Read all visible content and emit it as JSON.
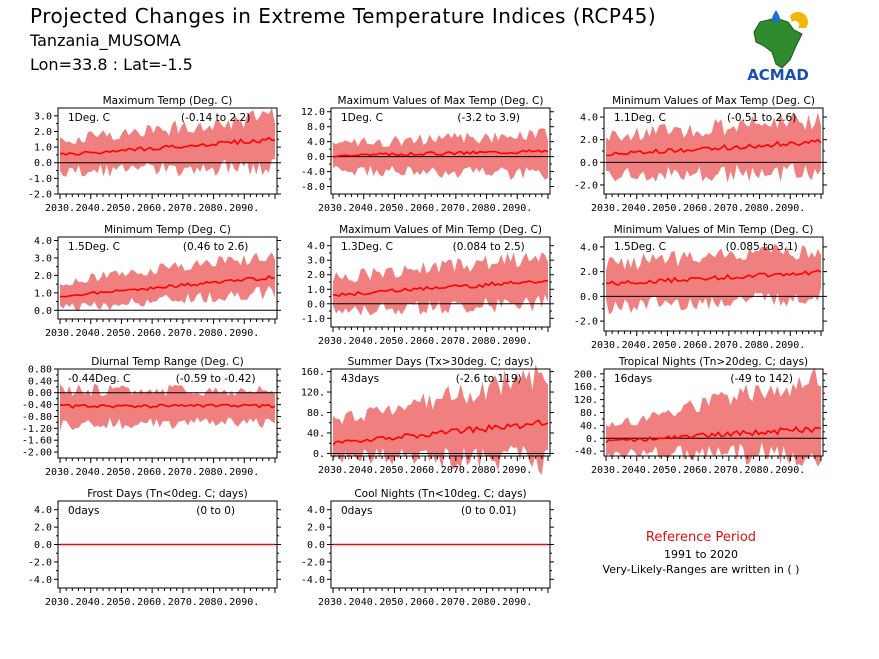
{
  "header": {
    "title": "Projected Changes in Extreme Temperature Indices (RCP45)",
    "region": "Tanzania_MUSOMA",
    "coords": "Lon=33.8 : Lat=-1.5",
    "logo_text": "ACMAD"
  },
  "reference": {
    "title": "Reference Period",
    "years": "1991 to 2020",
    "note": "Very-Likely-Ranges are written in ( )"
  },
  "colors": {
    "band": "#f08080",
    "line": "#ff0000",
    "zero": "#000000",
    "ref_title": "#e01010"
  },
  "chart_data": [
    {
      "type": "area",
      "title": "Maximum Temp (Deg. C)",
      "value_label": "1Deg. C",
      "range_label": "(-0.14 to 2.2)",
      "ylim": [
        -2.0,
        3.5
      ],
      "yticks": [
        "-2.0",
        "-1.0",
        "0.0",
        "1.0",
        "2.0",
        "3.0"
      ],
      "yvals": [
        -2,
        -1,
        0,
        1,
        2,
        3
      ],
      "xticks": [
        "2030.",
        "2040.",
        "2050.",
        "2060.",
        "2070.",
        "2080.",
        "2090."
      ],
      "series": {
        "start": 0.5,
        "end": 1.5,
        "low_start": -0.4,
        "low_end": 0.0,
        "high_start": 1.3,
        "high_end": 2.7
      }
    },
    {
      "type": "area",
      "title": "Maximum Values of Max Temp (Deg. C)",
      "value_label": "1Deg. C",
      "range_label": "(-3.2 to 3.9)",
      "ylim": [
        -10,
        13
      ],
      "yticks": [
        "-8.0",
        "-4.0",
        "0.0",
        "4.0",
        "8.0",
        "12.0"
      ],
      "yvals": [
        -8,
        -4,
        0,
        4,
        8,
        12
      ],
      "xticks": [
        "2030.",
        "2040.",
        "2050.",
        "2060.",
        "2070.",
        "2080.",
        "2090."
      ],
      "series": {
        "start": 0.3,
        "end": 1.5,
        "low_start": -3,
        "low_end": -4,
        "high_start": 3,
        "high_end": 5
      }
    },
    {
      "type": "area",
      "title": "Minimum Values of Max Temp (Deg. C)",
      "value_label": "1.1Deg. C",
      "range_label": "(-0.51 to 2.6)",
      "ylim": [
        -2.8,
        4.8
      ],
      "yticks": [
        "-2.0",
        "0.0",
        "2.0",
        "4.0"
      ],
      "yvals": [
        -2,
        0,
        2,
        4
      ],
      "xticks": [
        "2030.",
        "2040.",
        "2050.",
        "2060.",
        "2070.",
        "2080.",
        "2090."
      ],
      "series": {
        "start": 0.7,
        "end": 1.8,
        "low_start": -0.8,
        "low_end": -0.6,
        "high_start": 2.0,
        "high_end": 3.5
      }
    },
    {
      "type": "area",
      "title": "Minimum Temp (Deg. C)",
      "value_label": "1.5Deg. C",
      "range_label": "(0.46 to 2.6)",
      "ylim": [
        -0.5,
        4.2
      ],
      "yticks": [
        "0.0",
        "1.0",
        "2.0",
        "3.0",
        "4.0"
      ],
      "yvals": [
        0,
        1,
        2,
        3,
        4
      ],
      "xticks": [
        "2030.",
        "2040.",
        "2050.",
        "2060.",
        "2070.",
        "2080.",
        "2090."
      ],
      "series": {
        "start": 0.8,
        "end": 1.9,
        "low_start": 0.2,
        "low_end": 1.2,
        "high_start": 1.5,
        "high_end": 3.0
      }
    },
    {
      "type": "area",
      "title": "Maximum Values of Min Temp (Deg. C)",
      "value_label": "1.3Deg. C",
      "range_label": "(0.084 to 2.5)",
      "ylim": [
        -1.6,
        4.6
      ],
      "yticks": [
        "-1.0",
        "0.0",
        "1.0",
        "2.0",
        "3.0",
        "4.0"
      ],
      "yvals": [
        -1,
        0,
        1,
        2,
        3,
        4
      ],
      "xticks": [
        "2030.",
        "2040.",
        "2050.",
        "2060.",
        "2070.",
        "2080.",
        "2090."
      ],
      "series": {
        "start": 0.6,
        "end": 1.6,
        "low_start": -0.3,
        "low_end": 0.3,
        "high_start": 1.6,
        "high_end": 3.0
      }
    },
    {
      "type": "area",
      "title": "Minimum Values of Min Temp (Deg. C)",
      "value_label": "1.5Deg. C",
      "range_label": "(0.085 to 3.1)",
      "ylim": [
        -2.8,
        4.8
      ],
      "yticks": [
        "-2.0",
        "0.0",
        "2.0",
        "4.0"
      ],
      "yvals": [
        -2,
        0,
        2,
        4
      ],
      "xticks": [
        "2030.",
        "2040.",
        "2050.",
        "2060.",
        "2070.",
        "2080.",
        "2090."
      ],
      "series": {
        "start": 1.0,
        "end": 2.0,
        "low_start": -0.6,
        "low_end": 0.3,
        "high_start": 2.4,
        "high_end": 3.5
      }
    },
    {
      "type": "area",
      "title": "Diurnal Temp Range (Deg. C)",
      "value_label": "-0.44Deg. C",
      "range_label": "(-0.59 to -0.42)",
      "ylim": [
        -2.2,
        0.8
      ],
      "yticks": [
        "-2.00",
        "-1.60",
        "-1.20",
        "-0.80",
        "-0.40",
        "0.00",
        "0.40",
        "0.80"
      ],
      "yticks2": [
        "-1.80",
        "-1.40",
        "-1.00",
        "-0.60",
        "-0.20",
        "0.20",
        "0.60"
      ],
      "yvals": [
        -2.0,
        -1.6,
        -1.2,
        -0.8,
        -0.4,
        0.0,
        0.4,
        0.8
      ],
      "xticks": [
        "2030.",
        "2040.",
        "2050.",
        "2060.",
        "2070.",
        "2080.",
        "2090."
      ],
      "series": {
        "start": -0.45,
        "end": -0.45,
        "low_start": -1.0,
        "low_end": -0.9,
        "high_start": 0.0,
        "high_end": 0.0
      }
    },
    {
      "type": "area",
      "title": "Summer Days (Tx>30deg. C; days)",
      "value_label": "43days",
      "range_label": "(-2.6 to 119)",
      "ylim": [
        -5,
        165
      ],
      "yticks": [
        "0.",
        "40.",
        "80.",
        "120.",
        "160."
      ],
      "yvals": [
        0,
        40,
        80,
        120,
        160
      ],
      "xticks": [
        "2030.",
        "2040.",
        "2050.",
        "2060.",
        "2070.",
        "2080.",
        "2090."
      ],
      "series": {
        "start": 20,
        "end": 60,
        "low_start": 0,
        "low_end": 0,
        "high_start": 60,
        "high_end": 140
      }
    },
    {
      "type": "area",
      "title": "Tropical Nights (Tn>20deg. C; days)",
      "value_label": "16days",
      "range_label": "(-49 to 142)",
      "ylim": [
        -55,
        215
      ],
      "yticks": [
        "-40.",
        "0.",
        "40.",
        "80.",
        "120.",
        "160.",
        "200."
      ],
      "yticks2": [
        "-20.",
        "20.",
        "60.",
        "100.",
        "140.",
        "180."
      ],
      "yvals": [
        -40,
        0,
        40,
        80,
        120,
        160,
        200
      ],
      "xticks": [
        "2030.",
        "2040.",
        "2050.",
        "2060.",
        "2070.",
        "2080.",
        "2090."
      ],
      "series": {
        "start": -10,
        "end": 30,
        "low_start": -40,
        "low_end": -30,
        "high_start": 30,
        "high_end": 170
      }
    },
    {
      "type": "area",
      "title": "Frost Days (Tn<0deg. C; days)",
      "value_label": "0days",
      "range_label": "(0 to 0)",
      "ylim": [
        -5,
        5
      ],
      "yticks": [
        "-4.0",
        "-2.0",
        "0.0",
        "2.0",
        "4.0"
      ],
      "yvals": [
        -4,
        -2,
        0,
        2,
        4
      ],
      "xticks": [
        "2030.",
        "2040.",
        "2050.",
        "2060.",
        "2070.",
        "2080.",
        "2090."
      ],
      "series": {
        "start": 0,
        "end": 0,
        "low_start": 0,
        "low_end": 0,
        "high_start": 0,
        "high_end": 0
      }
    },
    {
      "type": "area",
      "title": "Cool Nights (Tn<10deg. C; days)",
      "value_label": "0days",
      "range_label": "(0 to 0.01)",
      "ylim": [
        -5,
        5
      ],
      "yticks": [
        "-4.0",
        "-2.0",
        "0.0",
        "2.0",
        "4.0"
      ],
      "yvals": [
        -4,
        -2,
        0,
        2,
        4
      ],
      "xticks": [
        "2030.",
        "2040.",
        "2050.",
        "2060.",
        "2070.",
        "2080.",
        "2090."
      ],
      "series": {
        "start": 0,
        "end": 0,
        "low_start": 0,
        "low_end": 0,
        "high_start": 0,
        "high_end": 0.05
      }
    }
  ]
}
